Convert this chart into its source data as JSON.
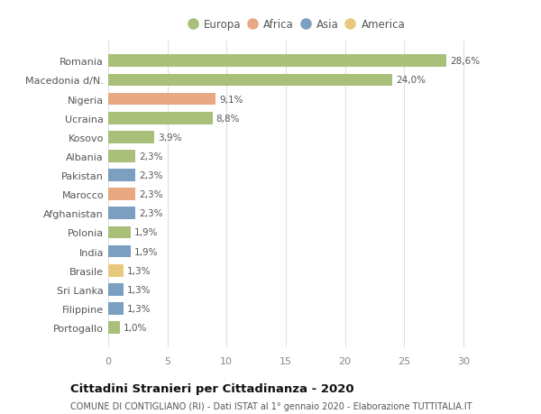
{
  "countries": [
    "Romania",
    "Macedonia d/N.",
    "Nigeria",
    "Ucraina",
    "Kosovo",
    "Albania",
    "Pakistan",
    "Marocco",
    "Afghanistan",
    "Polonia",
    "India",
    "Brasile",
    "Sri Lanka",
    "Filippine",
    "Portogallo"
  ],
  "values": [
    28.6,
    24.0,
    9.1,
    8.8,
    3.9,
    2.3,
    2.3,
    2.3,
    2.3,
    1.9,
    1.9,
    1.3,
    1.3,
    1.3,
    1.0
  ],
  "labels": [
    "28,6%",
    "24,0%",
    "9,1%",
    "8,8%",
    "3,9%",
    "2,3%",
    "2,3%",
    "2,3%",
    "2,3%",
    "1,9%",
    "1,9%",
    "1,3%",
    "1,3%",
    "1,3%",
    "1,0%"
  ],
  "continents": [
    "Europa",
    "Europa",
    "Africa",
    "Europa",
    "Europa",
    "Europa",
    "Asia",
    "Africa",
    "Asia",
    "Europa",
    "Asia",
    "America",
    "Asia",
    "Asia",
    "Europa"
  ],
  "continent_colors": {
    "Europa": "#a8c07a",
    "Africa": "#e8a882",
    "Asia": "#7a9fc0",
    "America": "#e8c87a"
  },
  "legend_items": [
    "Europa",
    "Africa",
    "Asia",
    "America"
  ],
  "legend_colors": [
    "#a8c07a",
    "#e8a882",
    "#7a9fc0",
    "#e8c87a"
  ],
  "title": "Cittadini Stranieri per Cittadinanza - 2020",
  "subtitle": "COMUNE DI CONTIGLIANO (RI) - Dati ISTAT al 1° gennaio 2020 - Elaborazione TUTTITALIA.IT",
  "xlim": [
    0,
    32
  ],
  "xticks": [
    0,
    5,
    10,
    15,
    20,
    25,
    30
  ],
  "background_color": "#ffffff",
  "grid_color": "#e0e0e0",
  "bar_height": 0.65
}
